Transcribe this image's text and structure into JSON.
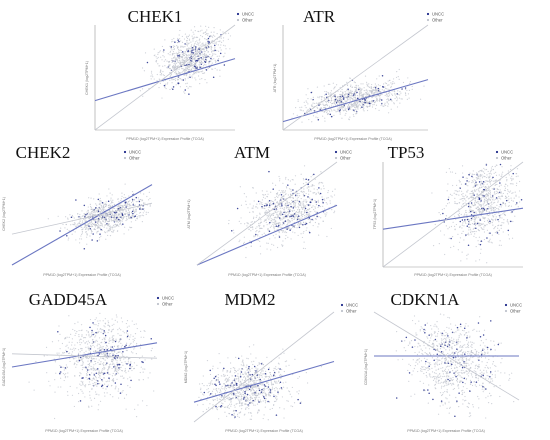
{
  "figure": {
    "background": "#ffffff",
    "colors": {
      "unc_point": "#1f2a8a",
      "other_point": "#bfc3cc",
      "unc_line": "#6b77c2",
      "other_line": "#c4c7cf",
      "axis": "#999999",
      "title": "#111111"
    }
  },
  "chart_data": [
    {
      "type": "scatter",
      "title": "CHEK1",
      "legend": [
        "UNCC",
        "Other"
      ],
      "legend_position": "top-right",
      "xlabel": "PPM1D (log2TPM+1) Expression Profile (TCGA)",
      "ylabel": "CHEK1 (log2TPM+1)",
      "grid": false,
      "axes": "left-bottom",
      "fits": [
        {
          "series": "UNCC",
          "from": [
            0.0,
            0.28
          ],
          "to": [
            1.0,
            0.68
          ]
        },
        {
          "series": "Other",
          "from": [
            0.0,
            0.0
          ],
          "to": [
            1.0,
            1.0
          ]
        }
      ],
      "cloud": {
        "cx": 0.68,
        "cy": 0.68,
        "sx": 0.12,
        "sy": 0.13,
        "rho": 0.5,
        "n": 900,
        "unc_frac": 0.1
      }
    },
    {
      "type": "scatter",
      "title": "ATR",
      "legend": [
        "UNCC",
        "Other"
      ],
      "legend_position": "top-right",
      "xlabel": "PPM1D (log2TPM+1) Expression Profile (TCGA)",
      "ylabel": "ATR (log2TPM+1)",
      "grid": false,
      "axes": "left-bottom",
      "fits": [
        {
          "series": "UNCC",
          "from": [
            0.0,
            0.08
          ],
          "to": [
            1.0,
            0.48
          ]
        },
        {
          "series": "Other",
          "from": [
            0.0,
            0.0
          ],
          "to": [
            1.0,
            1.0
          ]
        }
      ],
      "cloud": {
        "cx": 0.5,
        "cy": 0.3,
        "sx": 0.17,
        "sy": 0.08,
        "rho": 0.5,
        "n": 900,
        "unc_frac": 0.1
      }
    },
    {
      "type": "scatter",
      "title": "CHEK2",
      "legend": [
        "UNCC",
        "Other"
      ],
      "legend_position": "top-right",
      "xlabel": "PPM1D (log2TPM+1) Expression Profile (TCGA)",
      "ylabel": "CHEK2 (log2TPM+1)",
      "grid": false,
      "axes": "none",
      "fits": [
        {
          "series": "UNCC",
          "from": [
            0.0,
            0.0
          ],
          "to": [
            1.0,
            0.78
          ]
        },
        {
          "series": "Other",
          "from": [
            0.0,
            0.3
          ],
          "to": [
            1.0,
            0.6
          ]
        }
      ],
      "cloud": {
        "cx": 0.68,
        "cy": 0.48,
        "sx": 0.13,
        "sy": 0.09,
        "rho": 0.5,
        "n": 900,
        "unc_frac": 0.1
      }
    },
    {
      "type": "scatter",
      "title": "ATM",
      "legend": [
        "UNCC",
        "Other"
      ],
      "legend_position": "top-right",
      "xlabel": "PPM1D (log2TPM+1) Expression Profile (TCGA)",
      "ylabel": "ATM (log2TPM+1)",
      "grid": false,
      "axes": "none",
      "fits": [
        {
          "series": "UNCC",
          "from": [
            0.0,
            0.0
          ],
          "to": [
            1.0,
            0.58
          ]
        },
        {
          "series": "Other",
          "from": [
            0.0,
            0.0
          ],
          "to": [
            1.0,
            1.0
          ]
        }
      ],
      "cloud": {
        "cx": 0.65,
        "cy": 0.52,
        "sx": 0.15,
        "sy": 0.14,
        "rho": 0.3,
        "n": 900,
        "unc_frac": 0.1
      }
    },
    {
      "type": "scatter",
      "title": "TP53",
      "legend": [
        "UNCC",
        "Other"
      ],
      "legend_position": "top-right",
      "xlabel": "PPM1D (log2TPM+1) Expression Profile (TCGA)",
      "ylabel": "TP53 (log2TPM+1)",
      "grid": false,
      "axes": "left-bottom",
      "fits": [
        {
          "series": "UNCC",
          "from": [
            0.0,
            0.36
          ],
          "to": [
            1.0,
            0.56
          ]
        },
        {
          "series": "Other",
          "from": [
            0.0,
            0.0
          ],
          "to": [
            1.0,
            1.0
          ]
        }
      ],
      "cloud": {
        "cx": 0.72,
        "cy": 0.62,
        "sx": 0.12,
        "sy": 0.2,
        "rho": 0.2,
        "n": 900,
        "unc_frac": 0.1
      }
    },
    {
      "type": "scatter",
      "title": "GADD45A",
      "legend": [
        "UNCC",
        "Other"
      ],
      "legend_position": "top-right",
      "xlabel": "PPM1D (log2TPM+1) Expression Profile (TCGA)",
      "ylabel": "GADD45A (log2TPM+1)",
      "grid": false,
      "axes": "none",
      "fits": [
        {
          "series": "UNCC",
          "from": [
            0.0,
            0.5
          ],
          "to": [
            1.0,
            0.72
          ]
        },
        {
          "series": "Other",
          "from": [
            0.0,
            0.62
          ],
          "to": [
            1.0,
            0.58
          ]
        }
      ],
      "cloud": {
        "cx": 0.62,
        "cy": 0.58,
        "sx": 0.15,
        "sy": 0.18,
        "rho": 0.0,
        "n": 900,
        "unc_frac": 0.1
      }
    },
    {
      "type": "scatter",
      "title": "MDM2",
      "legend": [
        "UNCC",
        "Other"
      ],
      "legend_position": "top-right",
      "xlabel": "PPM1D (log2TPM+1) Expression Profile (TCGA)",
      "ylabel": "MDM2 (log2TPM+1)",
      "grid": false,
      "axes": "none",
      "fits": [
        {
          "series": "UNCC",
          "from": [
            0.0,
            0.18
          ],
          "to": [
            1.0,
            0.55
          ]
        },
        {
          "series": "Other",
          "from": [
            0.0,
            0.0
          ],
          "to": [
            1.0,
            1.0
          ]
        }
      ],
      "cloud": {
        "cx": 0.38,
        "cy": 0.3,
        "sx": 0.15,
        "sy": 0.12,
        "rho": 0.2,
        "n": 900,
        "unc_frac": 0.1
      }
    },
    {
      "type": "scatter",
      "title": "CDKN1A",
      "legend": [
        "UNCC",
        "Other"
      ],
      "legend_position": "top-right",
      "xlabel": "PPM1D (log2TPM+1) Expression Profile (TCGA)",
      "ylabel": "CDKN1A (log2TPM+1)",
      "grid": false,
      "axes": "none",
      "fits": [
        {
          "series": "UNCC",
          "from": [
            0.0,
            0.6
          ],
          "to": [
            1.0,
            0.6
          ]
        },
        {
          "series": "Other",
          "from": [
            0.0,
            1.0
          ],
          "to": [
            1.0,
            0.2
          ]
        }
      ],
      "cloud": {
        "cx": 0.55,
        "cy": 0.55,
        "sx": 0.15,
        "sy": 0.2,
        "rho": -0.1,
        "n": 900,
        "unc_frac": 0.1
      }
    }
  ]
}
